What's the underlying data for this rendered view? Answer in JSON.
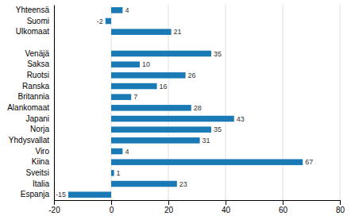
{
  "chart_data": {
    "type": "bar",
    "orientation": "horizontal",
    "categories": [
      "Yhteensä",
      "Suomi",
      "Ulkomaat",
      null,
      "Venäjä",
      "Saksa",
      "Ruotsi",
      "Ranska",
      "Britannia",
      "Alankomaat",
      "Japani",
      "Norja",
      "Yhdysvallat",
      "Viro",
      "Kiina",
      "Sveitsi",
      "Italia",
      "Espanja"
    ],
    "values": [
      4,
      -2,
      21,
      null,
      35,
      10,
      26,
      16,
      7,
      28,
      43,
      35,
      31,
      4,
      67,
      1,
      23,
      -15
    ],
    "color": "#1a7ab5",
    "xlim": [
      -20,
      80
    ],
    "xticks": [
      -20,
      0,
      20,
      40,
      60,
      80
    ],
    "grid": true,
    "data_labels": true
  }
}
